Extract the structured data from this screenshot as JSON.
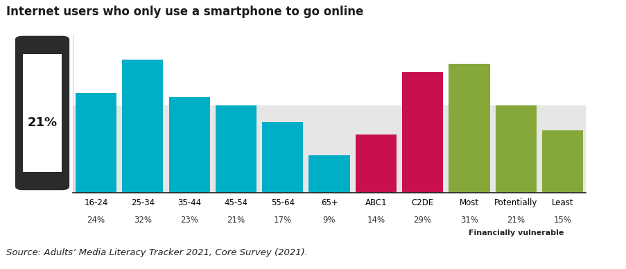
{
  "chart_data": {
    "type": "bar",
    "title": "Internet users who only use a smartphone to go online",
    "categories": [
      "16-24",
      "25-34",
      "35-44",
      "45-54",
      "55-64",
      "65+",
      "ABC1",
      "C2DE",
      "Most",
      "Potentially",
      "Least"
    ],
    "values": [
      24,
      32,
      23,
      21,
      17,
      9,
      14,
      29,
      31,
      21,
      15
    ],
    "value_labels": [
      "24%",
      "32%",
      "23%",
      "21%",
      "17%",
      "9%",
      "14%",
      "29%",
      "31%",
      "21%",
      "15%"
    ],
    "data_labels": true,
    "colors": [
      "#00aec6",
      "#00aec6",
      "#00aec6",
      "#00aec6",
      "#00aec6",
      "#00aec6",
      "#c8104e",
      "#c8104e",
      "#86a83a",
      "#86a83a",
      "#86a83a"
    ],
    "ylim": [
      0,
      38
    ],
    "yticks": [],
    "tick_labels": "x",
    "average": {
      "value": 21,
      "label": "21%"
    },
    "groups": [
      {
        "label": "Financially vulnerable",
        "categories": [
          "Most",
          "Potentially",
          "Least"
        ]
      }
    ],
    "source": "Source: Adults’ Media Literacy Tracker 2021, Core Survey (2021)."
  }
}
